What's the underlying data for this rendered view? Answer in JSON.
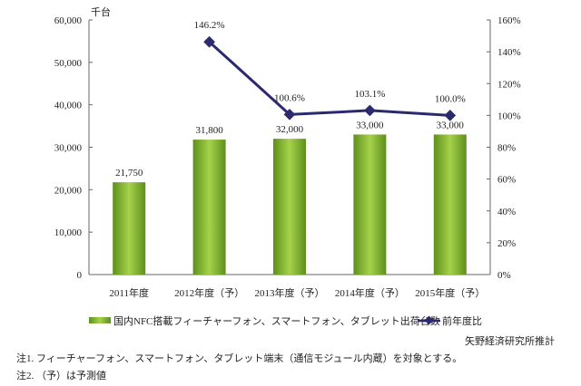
{
  "chart_data": {
    "type": "bar+line",
    "categories": [
      "2011年度",
      "2012年度（予）",
      "2013年度（予）",
      "2014年度（予）",
      "2015年度（予）"
    ],
    "left_unit": "千台",
    "left_axis": {
      "ylim": [
        0,
        60000
      ],
      "ticks": [
        "0",
        "10,000",
        "20,000",
        "30,000",
        "40,000",
        "50,000",
        "60,000"
      ]
    },
    "right_axis": {
      "ylim": [
        0,
        160
      ],
      "ticks": [
        "0%",
        "20%",
        "40%",
        "60%",
        "80%",
        "100%",
        "120%",
        "140%",
        "160%"
      ]
    },
    "series": [
      {
        "name": "国内NFC搭載フィーチャーフォン、スマートフォン、タブレット出荷台数",
        "type": "bar",
        "axis": "left",
        "color": "#7aab2a",
        "values": [
          21750,
          31800,
          32000,
          33000,
          33000
        ],
        "labels": [
          "21,750",
          "31,800",
          "32,000",
          "33,000",
          "33,000"
        ]
      },
      {
        "name": "前年度比",
        "type": "line",
        "axis": "right",
        "color": "#2b2a6e",
        "values": [
          null,
          146.2,
          100.6,
          103.1,
          100.0
        ],
        "labels": [
          "",
          "146.2%",
          "100.6%",
          "103.1%",
          "100.0%"
        ]
      }
    ],
    "grid": false,
    "legend": "bottom"
  },
  "source": "矢野経済研究所推計",
  "notes": [
    "注1.  フィーチャーフォン、スマートフォン、タブレット端末（通信モジュール内蔵）を対象とする。",
    "注2.  （予）は予測値"
  ]
}
